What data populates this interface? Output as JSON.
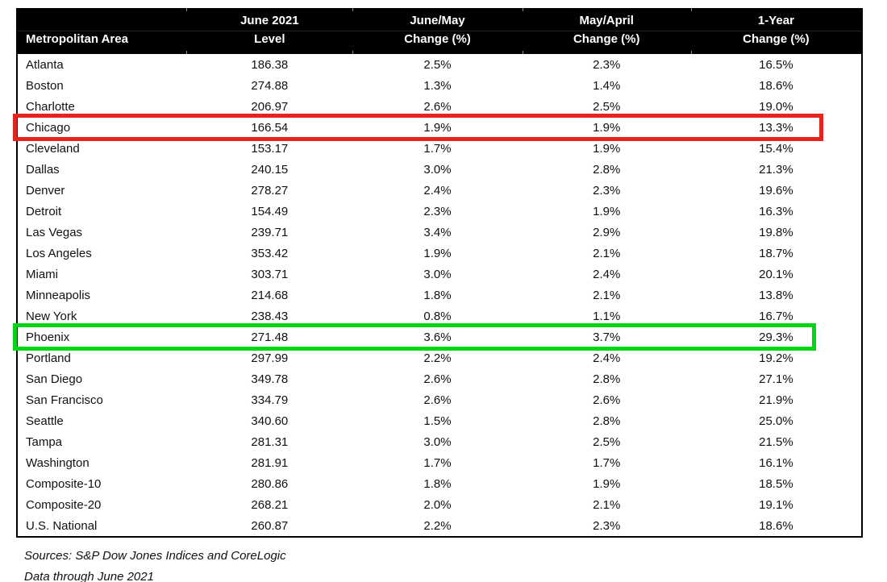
{
  "table": {
    "columns": [
      {
        "line1": "",
        "line2": "Metropolitan Area"
      },
      {
        "line1": "June 2021",
        "line2": "Level"
      },
      {
        "line1": "June/May",
        "line2": "Change (%)"
      },
      {
        "line1": "May/April",
        "line2": "Change (%)"
      },
      {
        "line1": "1-Year",
        "line2": "Change (%)"
      }
    ],
    "rows": [
      {
        "area": "Atlanta",
        "level": "186.38",
        "june_may": "2.5%",
        "may_april": "2.3%",
        "one_year": "16.5%",
        "highlight": null
      },
      {
        "area": "Boston",
        "level": "274.88",
        "june_may": "1.3%",
        "may_april": "1.4%",
        "one_year": "18.6%",
        "highlight": null
      },
      {
        "area": "Charlotte",
        "level": "206.97",
        "june_may": "2.6%",
        "may_april": "2.5%",
        "one_year": "19.0%",
        "highlight": null
      },
      {
        "area": "Chicago",
        "level": "166.54",
        "june_may": "1.9%",
        "may_april": "1.9%",
        "one_year": "13.3%",
        "highlight": "red"
      },
      {
        "area": "Cleveland",
        "level": "153.17",
        "june_may": "1.7%",
        "may_april": "1.9%",
        "one_year": "15.4%",
        "highlight": null
      },
      {
        "area": "Dallas",
        "level": "240.15",
        "june_may": "3.0%",
        "may_april": "2.8%",
        "one_year": "21.3%",
        "highlight": null
      },
      {
        "area": "Denver",
        "level": "278.27",
        "june_may": "2.4%",
        "may_april": "2.3%",
        "one_year": "19.6%",
        "highlight": null
      },
      {
        "area": "Detroit",
        "level": "154.49",
        "june_may": "2.3%",
        "may_april": "1.9%",
        "one_year": "16.3%",
        "highlight": null
      },
      {
        "area": "Las Vegas",
        "level": "239.71",
        "june_may": "3.4%",
        "may_april": "2.9%",
        "one_year": "19.8%",
        "highlight": null
      },
      {
        "area": "Los Angeles",
        "level": "353.42",
        "june_may": "1.9%",
        "may_april": "2.1%",
        "one_year": "18.7%",
        "highlight": null
      },
      {
        "area": "Miami",
        "level": "303.71",
        "june_may": "3.0%",
        "may_april": "2.4%",
        "one_year": "20.1%",
        "highlight": null
      },
      {
        "area": "Minneapolis",
        "level": "214.68",
        "june_may": "1.8%",
        "may_april": "2.1%",
        "one_year": "13.8%",
        "highlight": null
      },
      {
        "area": "New York",
        "level": "238.43",
        "june_may": "0.8%",
        "may_april": "1.1%",
        "one_year": "16.7%",
        "highlight": null
      },
      {
        "area": "Phoenix",
        "level": "271.48",
        "june_may": "3.6%",
        "may_april": "3.7%",
        "one_year": "29.3%",
        "highlight": "green"
      },
      {
        "area": "Portland",
        "level": "297.99",
        "june_may": "2.2%",
        "may_april": "2.4%",
        "one_year": "19.2%",
        "highlight": null
      },
      {
        "area": "San Diego",
        "level": "349.78",
        "june_may": "2.6%",
        "may_april": "2.8%",
        "one_year": "27.1%",
        "highlight": null
      },
      {
        "area": "San Francisco",
        "level": "334.79",
        "june_may": "2.6%",
        "may_april": "2.6%",
        "one_year": "21.9%",
        "highlight": null
      },
      {
        "area": "Seattle",
        "level": "340.60",
        "june_may": "1.5%",
        "may_april": "2.8%",
        "one_year": "25.0%",
        "highlight": null
      },
      {
        "area": "Tampa",
        "level": "281.31",
        "june_may": "3.0%",
        "may_april": "2.5%",
        "one_year": "21.5%",
        "highlight": null
      },
      {
        "area": "Washington",
        "level": "281.91",
        "june_may": "1.7%",
        "may_april": "1.7%",
        "one_year": "16.1%",
        "highlight": null
      },
      {
        "area": "Composite-10",
        "level": "280.86",
        "june_may": "1.8%",
        "may_april": "1.9%",
        "one_year": "18.5%",
        "highlight": null
      },
      {
        "area": "Composite-20",
        "level": "268.21",
        "june_may": "2.0%",
        "may_april": "2.1%",
        "one_year": "19.1%",
        "highlight": null
      },
      {
        "area": "U.S. National",
        "level": "260.87",
        "june_may": "2.2%",
        "may_april": "2.3%",
        "one_year": "18.6%",
        "highlight": null
      }
    ]
  },
  "footer": {
    "sources": "Sources: S&P Dow Jones Indices and CoreLogic",
    "data_through": "Data through June 2021"
  },
  "colors": {
    "header_bg": "#000000",
    "header_text": "#ffffff",
    "highlight_red": "#e8221c",
    "highlight_green": "#00d415"
  },
  "chart_data": {
    "type": "table",
    "title": "",
    "columns": [
      "Metropolitan Area",
      "June 2021 Level",
      "June/May Change (%)",
      "May/April Change (%)",
      "1-Year Change (%)"
    ],
    "rows": [
      [
        "Atlanta",
        186.38,
        2.5,
        2.3,
        16.5
      ],
      [
        "Boston",
        274.88,
        1.3,
        1.4,
        18.6
      ],
      [
        "Charlotte",
        206.97,
        2.6,
        2.5,
        19.0
      ],
      [
        "Chicago",
        166.54,
        1.9,
        1.9,
        13.3
      ],
      [
        "Cleveland",
        153.17,
        1.7,
        1.9,
        15.4
      ],
      [
        "Dallas",
        240.15,
        3.0,
        2.8,
        21.3
      ],
      [
        "Denver",
        278.27,
        2.4,
        2.3,
        19.6
      ],
      [
        "Detroit",
        154.49,
        2.3,
        1.9,
        16.3
      ],
      [
        "Las Vegas",
        239.71,
        3.4,
        2.9,
        19.8
      ],
      [
        "Los Angeles",
        353.42,
        1.9,
        2.1,
        18.7
      ],
      [
        "Miami",
        303.71,
        3.0,
        2.4,
        20.1
      ],
      [
        "Minneapolis",
        214.68,
        1.8,
        2.1,
        13.8
      ],
      [
        "New York",
        238.43,
        0.8,
        1.1,
        16.7
      ],
      [
        "Phoenix",
        271.48,
        3.6,
        3.7,
        29.3
      ],
      [
        "Portland",
        297.99,
        2.2,
        2.4,
        19.2
      ],
      [
        "San Diego",
        349.78,
        2.6,
        2.8,
        27.1
      ],
      [
        "San Francisco",
        334.79,
        2.6,
        2.6,
        21.9
      ],
      [
        "Seattle",
        340.6,
        1.5,
        2.8,
        25.0
      ],
      [
        "Tampa",
        281.31,
        3.0,
        2.5,
        21.5
      ],
      [
        "Washington",
        281.91,
        1.7,
        1.7,
        16.1
      ],
      [
        "Composite-10",
        280.86,
        1.8,
        1.9,
        18.5
      ],
      [
        "Composite-20",
        268.21,
        2.0,
        2.1,
        19.1
      ],
      [
        "U.S. National",
        260.87,
        2.2,
        2.3,
        18.6
      ]
    ],
    "annotations": [
      {
        "row": "Chicago",
        "marker": "red-outline-box"
      },
      {
        "row": "Phoenix",
        "marker": "green-outline-box"
      }
    ],
    "legend_position": "none",
    "grid": false
  }
}
